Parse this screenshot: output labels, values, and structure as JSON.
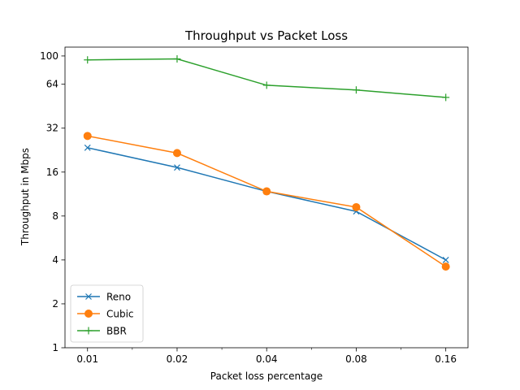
{
  "chart_data": {
    "type": "line",
    "title": "Throughput vs Packet Loss",
    "xlabel": "Packet loss percentage",
    "ylabel": "Throughput in Mbps",
    "x_scale": "log2",
    "y_scale": "log2",
    "x": [
      0.01,
      0.02,
      0.04,
      0.08,
      0.16
    ],
    "x_tick_labels": [
      "0.01",
      "0.02",
      "0.04",
      "0.08",
      "0.16"
    ],
    "y_ticks": [
      1,
      2,
      4,
      8,
      16,
      32,
      64,
      100
    ],
    "y_tick_labels": [
      "1",
      "2",
      "4",
      "8",
      "16",
      "32",
      "64",
      "100"
    ],
    "xlim": [
      0.0084,
      0.19
    ],
    "ylim": [
      1,
      115
    ],
    "grid": false,
    "legend_position": "lower-left",
    "series": [
      {
        "name": "Reno",
        "marker": "x",
        "color": "#1f77b4",
        "values": [
          23.5,
          17.2,
          11.8,
          8.6,
          4.0
        ]
      },
      {
        "name": "Cubic",
        "marker": "o",
        "color": "#ff7f0e",
        "values": [
          28.3,
          21.6,
          11.8,
          9.2,
          3.6
        ]
      },
      {
        "name": "BBR",
        "marker": "+",
        "color": "#2ca02c",
        "values": [
          94.0,
          95.5,
          63.0,
          58.5,
          52.0
        ]
      }
    ]
  }
}
